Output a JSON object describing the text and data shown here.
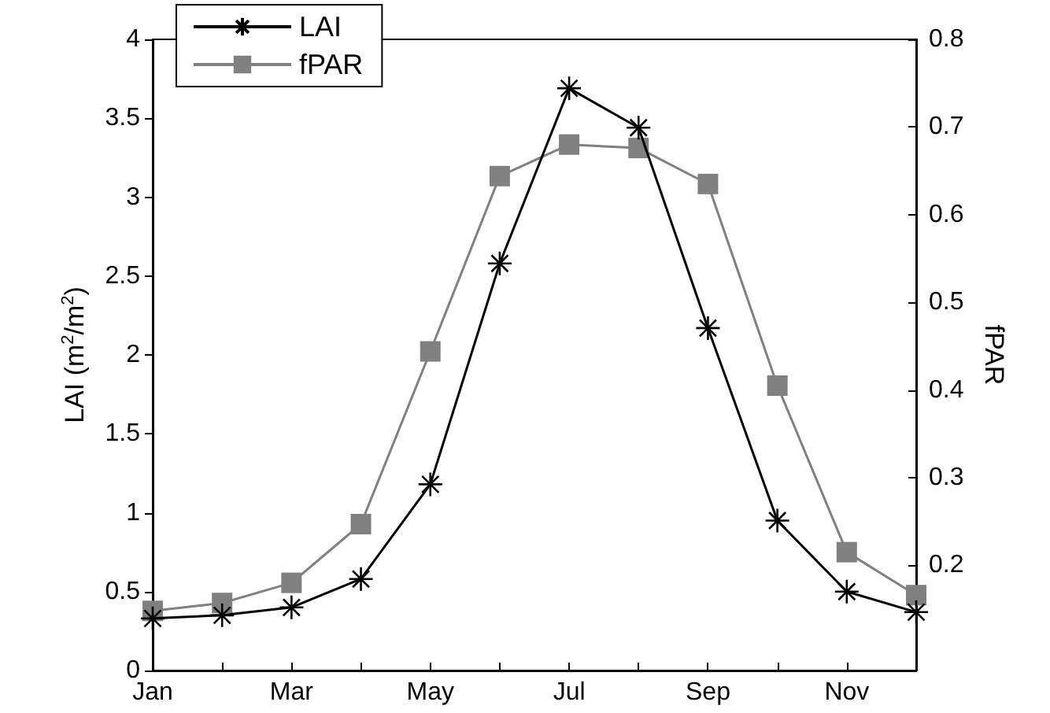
{
  "chart_data": {
    "type": "line",
    "categories": [
      "Jan",
      null,
      "Mar",
      null,
      "May",
      null,
      "Jul",
      null,
      "Sep",
      null,
      "Nov",
      null
    ],
    "series": [
      {
        "name": "LAI",
        "color": "#000000",
        "marker": "cross",
        "values": [
          0.33,
          0.35,
          0.4,
          0.58,
          1.18,
          2.58,
          3.69,
          3.44,
          2.17,
          0.95,
          0.5,
          0.37
        ]
      },
      {
        "name": "fPAR",
        "color": "#808080",
        "marker": "square",
        "axis": "y2",
        "values": [
          0.148,
          0.157,
          0.18,
          0.247,
          0.444,
          0.644,
          0.68,
          0.676,
          0.635,
          0.405,
          0.215,
          0.166
        ]
      }
    ],
    "ylabel": "LAI (m$^{2}$/m$^{2}$)",
    "y2label": "fPAR",
    "ylim": [
      0,
      4
    ],
    "yticks": [
      0,
      0.5,
      1,
      1.5,
      2,
      2.5,
      3,
      3.5,
      4
    ],
    "y2lim": [
      0.08,
      0.8
    ],
    "y2ticks": [
      0.2,
      0.3,
      0.4,
      0.5,
      0.6,
      0.7,
      0.8
    ],
    "grid": false,
    "legend": "top left",
    "line_style": "solid"
  }
}
